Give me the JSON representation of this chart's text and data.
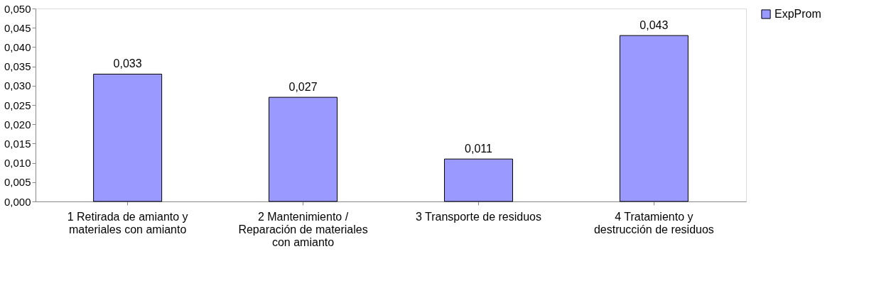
{
  "chart_data": {
    "type": "bar",
    "categories": [
      "1 Retirada de amianto y materiales con amianto",
      "2 Mantenimiento / Reparación de materiales con amianto",
      "3 Transporte de residuos",
      "4 Tratamiento y destrucción de residuos"
    ],
    "series": [
      {
        "name": "ExpProm",
        "color": "#9999ff",
        "values": [
          0.033,
          0.027,
          0.011,
          0.043
        ],
        "value_labels": [
          "0,033",
          "0,027",
          "0,011",
          "0,043"
        ]
      }
    ],
    "ylim": [
      0,
      0.05
    ],
    "yticks": [
      {
        "value": 0,
        "label": "0,000"
      },
      {
        "value": 0.005,
        "label": "0,005"
      },
      {
        "value": 0.01,
        "label": "0,010"
      },
      {
        "value": 0.015,
        "label": "0,015"
      },
      {
        "value": 0.02,
        "label": "0,020"
      },
      {
        "value": 0.025,
        "label": "0,025"
      },
      {
        "value": 0.03,
        "label": "0,030"
      },
      {
        "value": 0.035,
        "label": "0,035"
      },
      {
        "value": 0.04,
        "label": "0,040"
      },
      {
        "value": 0.045,
        "label": "0,045"
      },
      {
        "value": 0.05,
        "label": "0,050"
      }
    ],
    "grid": false,
    "legend": "right"
  }
}
